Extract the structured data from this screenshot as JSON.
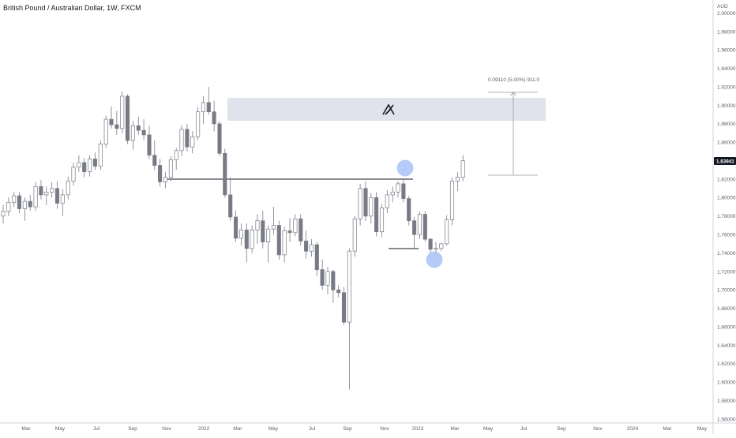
{
  "chart_title": "British Pound / Australian Dollar, 1W, FXCM",
  "currency": "AUD",
  "last_price": "1.83941",
  "measure_label": "0.09110 (5.00%) 911.0",
  "colors": {
    "body_up": "#ffffff",
    "body_down": "#787b86",
    "wick": "#787b86",
    "zone": "#e0e3eb",
    "marker": "#a9c3f7",
    "price_badge": "#131722"
  },
  "icons": {
    "watermark": "brand-logo-icon"
  },
  "chart_data": {
    "type": "candlestick",
    "title": "British Pound / Australian Dollar, 1W, FXCM",
    "y_unit": "AUD",
    "ylim": [
      1.55,
      2.01
    ],
    "y_ticks": [
      "2.00000",
      "1.98000",
      "1.96000",
      "1.94000",
      "1.92000",
      "1.90000",
      "1.88000",
      "1.86000",
      "1.84000",
      "1.82000",
      "1.80000",
      "1.78000",
      "1.76000",
      "1.74000",
      "1.72000",
      "1.70000",
      "1.68000",
      "1.66000",
      "1.64000",
      "1.62000",
      "1.60000",
      "1.58000",
      "1.56000"
    ],
    "x_ticks": [
      "Mar",
      "May",
      "Jul",
      "Sep",
      "Nov",
      "2022",
      "Mar",
      "May",
      "Jul",
      "Sep",
      "Nov",
      "2023",
      "Mar",
      "May",
      "Jul",
      "Sep",
      "Nov",
      "2024",
      "Mar",
      "May"
    ],
    "candles": [
      [
        1.78,
        1.792,
        1.772,
        1.785
      ],
      [
        1.785,
        1.8,
        1.78,
        1.795
      ],
      [
        1.795,
        1.806,
        1.79,
        1.802
      ],
      [
        1.802,
        1.806,
        1.783,
        1.788
      ],
      [
        1.788,
        1.8,
        1.775,
        1.796
      ],
      [
        1.796,
        1.803,
        1.786,
        1.79
      ],
      [
        1.79,
        1.817,
        1.786,
        1.812
      ],
      [
        1.812,
        1.819,
        1.798,
        1.803
      ],
      [
        1.803,
        1.812,
        1.792,
        1.806
      ],
      [
        1.806,
        1.817,
        1.8,
        1.81
      ],
      [
        1.81,
        1.818,
        1.788,
        1.794
      ],
      [
        1.794,
        1.809,
        1.78,
        1.803
      ],
      [
        1.803,
        1.823,
        1.798,
        1.818
      ],
      [
        1.818,
        1.838,
        1.813,
        1.833
      ],
      [
        1.833,
        1.846,
        1.828,
        1.838
      ],
      [
        1.838,
        1.843,
        1.822,
        1.828
      ],
      [
        1.828,
        1.846,
        1.823,
        1.842
      ],
      [
        1.842,
        1.849,
        1.83,
        1.834
      ],
      [
        1.834,
        1.862,
        1.83,
        1.858
      ],
      [
        1.858,
        1.889,
        1.854,
        1.885
      ],
      [
        1.885,
        1.899,
        1.875,
        1.879
      ],
      [
        1.879,
        1.894,
        1.868,
        1.875
      ],
      [
        1.875,
        1.915,
        1.87,
        1.91
      ],
      [
        1.91,
        1.912,
        1.858,
        1.862
      ],
      [
        1.862,
        1.883,
        1.852,
        1.878
      ],
      [
        1.878,
        1.888,
        1.868,
        1.873
      ],
      [
        1.873,
        1.885,
        1.862,
        1.868
      ],
      [
        1.868,
        1.878,
        1.842,
        1.846
      ],
      [
        1.846,
        1.862,
        1.83,
        1.835
      ],
      [
        1.835,
        1.842,
        1.812,
        1.817
      ],
      [
        1.817,
        1.828,
        1.81,
        1.822
      ],
      [
        1.822,
        1.845,
        1.818,
        1.841
      ],
      [
        1.841,
        1.854,
        1.83,
        1.851
      ],
      [
        1.851,
        1.879,
        1.845,
        1.874
      ],
      [
        1.874,
        1.88,
        1.85,
        1.855
      ],
      [
        1.855,
        1.872,
        1.848,
        1.866
      ],
      [
        1.866,
        1.898,
        1.862,
        1.893
      ],
      [
        1.893,
        1.91,
        1.88,
        1.903
      ],
      [
        1.903,
        1.92,
        1.89,
        1.893
      ],
      [
        1.893,
        1.905,
        1.872,
        1.88
      ],
      [
        1.88,
        1.883,
        1.845,
        1.848
      ],
      [
        1.848,
        1.853,
        1.8,
        1.803
      ],
      [
        1.803,
        1.822,
        1.775,
        1.779
      ],
      [
        1.779,
        1.786,
        1.752,
        1.756
      ],
      [
        1.756,
        1.772,
        1.748,
        1.765
      ],
      [
        1.765,
        1.772,
        1.73,
        1.745
      ],
      [
        1.745,
        1.77,
        1.74,
        1.765
      ],
      [
        1.765,
        1.782,
        1.75,
        1.775
      ],
      [
        1.775,
        1.786,
        1.745,
        1.752
      ],
      [
        1.752,
        1.77,
        1.73,
        1.766
      ],
      [
        1.766,
        1.79,
        1.76,
        1.77
      ],
      [
        1.77,
        1.775,
        1.733,
        1.738
      ],
      [
        1.738,
        1.768,
        1.73,
        1.764
      ],
      [
        1.764,
        1.778,
        1.752,
        1.762
      ],
      [
        1.762,
        1.782,
        1.758,
        1.777
      ],
      [
        1.777,
        1.782,
        1.748,
        1.753
      ],
      [
        1.753,
        1.764,
        1.734,
        1.742
      ],
      [
        1.742,
        1.755,
        1.736,
        1.749
      ],
      [
        1.749,
        1.752,
        1.715,
        1.722
      ],
      [
        1.722,
        1.733,
        1.7,
        1.705
      ],
      [
        1.705,
        1.725,
        1.695,
        1.72
      ],
      [
        1.72,
        1.722,
        1.686,
        1.7
      ],
      [
        1.7,
        1.705,
        1.692,
        1.697
      ],
      [
        1.697,
        1.703,
        1.662,
        1.665
      ],
      [
        1.665,
        1.745,
        1.592,
        1.742
      ],
      [
        1.742,
        1.78,
        1.736,
        1.777
      ],
      [
        1.777,
        1.815,
        1.77,
        1.81
      ],
      [
        1.81,
        1.818,
        1.775,
        1.78
      ],
      [
        1.78,
        1.805,
        1.772,
        1.8
      ],
      [
        1.8,
        1.806,
        1.758,
        1.763
      ],
      [
        1.763,
        1.793,
        1.757,
        1.789
      ],
      [
        1.789,
        1.808,
        1.783,
        1.803
      ],
      [
        1.803,
        1.812,
        1.795,
        1.806
      ],
      [
        1.806,
        1.818,
        1.8,
        1.815
      ],
      [
        1.815,
        1.819,
        1.795,
        1.799
      ],
      [
        1.799,
        1.802,
        1.77,
        1.775
      ],
      [
        1.775,
        1.779,
        1.745,
        1.76
      ],
      [
        1.76,
        1.785,
        1.755,
        1.782
      ],
      [
        1.782,
        1.785,
        1.752,
        1.755
      ],
      [
        1.755,
        1.756,
        1.74,
        1.744
      ],
      [
        1.744,
        1.752,
        1.736,
        1.745
      ],
      [
        1.745,
        1.751,
        1.742,
        1.75
      ],
      [
        1.75,
        1.781,
        1.748,
        1.776
      ],
      [
        1.776,
        1.822,
        1.77,
        1.818
      ],
      [
        1.818,
        1.828,
        1.807,
        1.822
      ],
      [
        1.822,
        1.846,
        1.818,
        1.84
      ]
    ]
  }
}
